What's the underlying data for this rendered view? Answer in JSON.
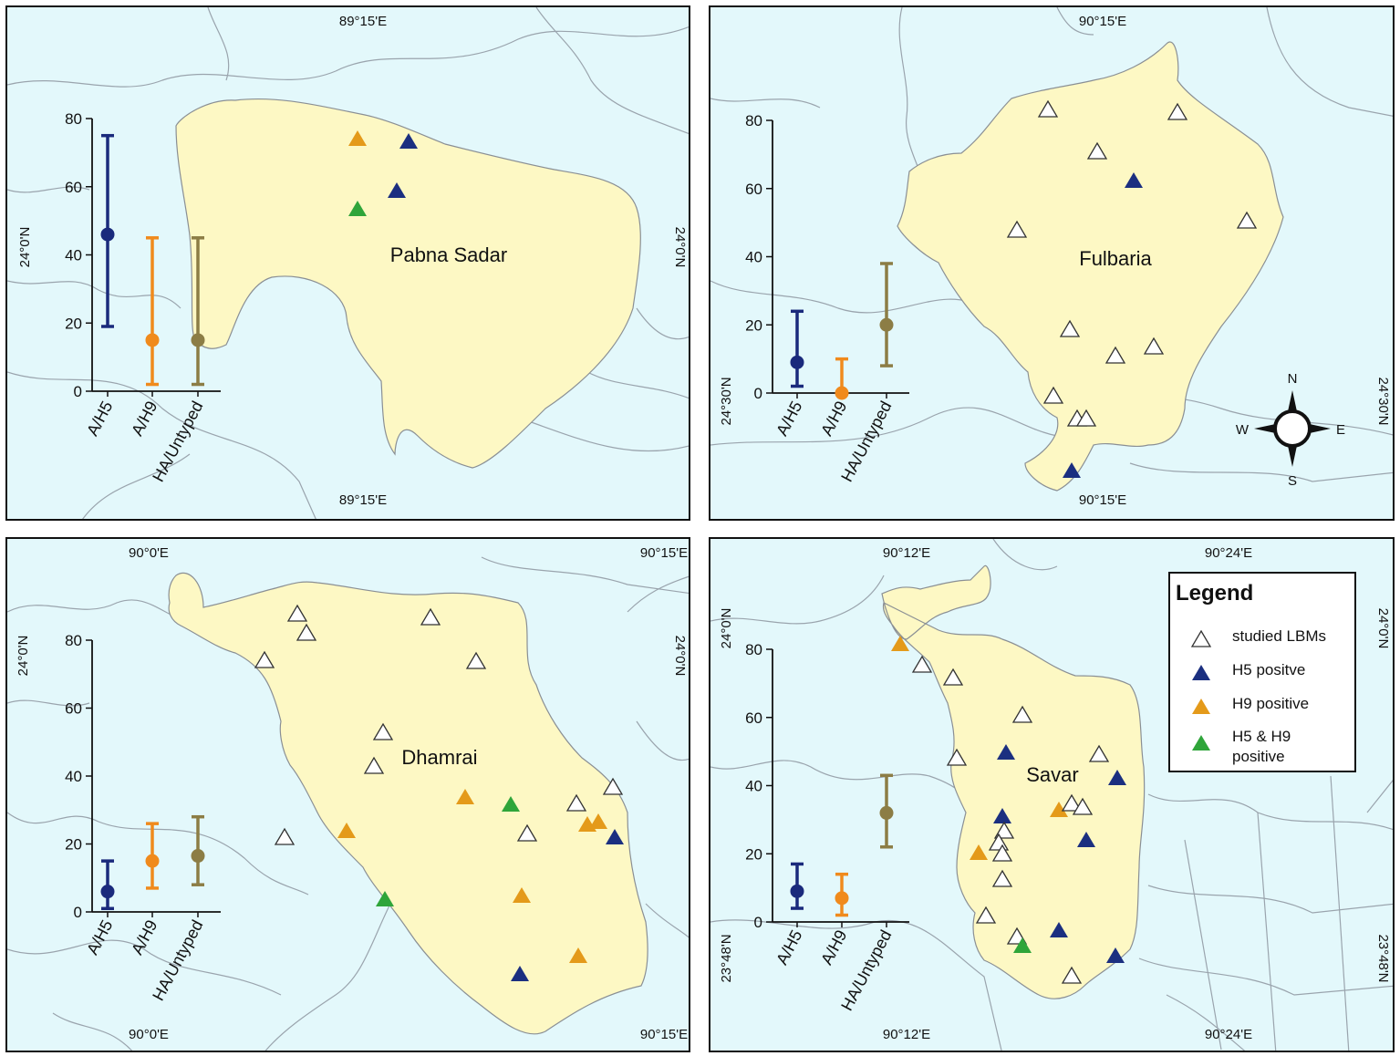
{
  "colors": {
    "water": "#e3f8fb",
    "land": "#fdf8c4",
    "boundary": "#9aa4ad",
    "h5": "#1a2a7c",
    "h9": "#f08a1c",
    "untyped": "#8c7d45",
    "tri_h5": "#1b2f80",
    "tri_h9": "#e49a1a",
    "tri_h5h9": "#2fa53a"
  },
  "categories": [
    "A/H5",
    "A/H9",
    "HA/Untyped"
  ],
  "legend": {
    "title": "Legend",
    "items": [
      {
        "label": "studied LBMs",
        "type": "studied"
      },
      {
        "label": "H5 positve",
        "type": "h5"
      },
      {
        "label": "H9 positive",
        "type": "h9"
      },
      {
        "label": "H5 & H9 positive",
        "type": "h5h9"
      }
    ]
  },
  "compass": {
    "n": "N",
    "s": "S",
    "e": "E",
    "w": "W"
  },
  "panels": [
    {
      "id": "pabna",
      "name": "Pabna Sadar",
      "coords": {
        "top": "89°15'E",
        "bottom": "89°15'E",
        "left": "24°0'N",
        "right": "24°0'N"
      },
      "chart_data": {
        "type": "scatter",
        "categories": [
          "A/H5",
          "A/H9",
          "HA/Untyped"
        ],
        "ylim": [
          0,
          80
        ],
        "yticks": [
          "0",
          "20",
          "40",
          "60",
          "80"
        ],
        "series": [
          {
            "name": "A/H5",
            "value": 46,
            "low": 19,
            "high": 75
          },
          {
            "name": "A/H9",
            "value": 15,
            "low": 2,
            "high": 45
          },
          {
            "name": "HA/Untyped",
            "value": 15,
            "low": 2,
            "high": 45
          }
        ]
      }
    },
    {
      "id": "fulbaria",
      "name": "Fulbaria",
      "coords": {
        "top": "90°15'E",
        "bottom": "90°15'E",
        "left": "24°30'N",
        "right": "24°30'N"
      },
      "chart_data": {
        "type": "scatter",
        "categories": [
          "A/H5",
          "A/H9",
          "HA/Untyped"
        ],
        "ylim": [
          0,
          80
        ],
        "yticks": [
          "0",
          "20",
          "40",
          "60",
          "80"
        ],
        "series": [
          {
            "name": "A/H5",
            "value": 9,
            "low": 2,
            "high": 24
          },
          {
            "name": "A/H9",
            "value": 0,
            "low": 0,
            "high": 10
          },
          {
            "name": "HA/Untyped",
            "value": 20,
            "low": 8,
            "high": 38
          }
        ]
      }
    },
    {
      "id": "dhamrai",
      "name": "Dhamrai",
      "coords": {
        "top_left": "90°0'E",
        "top_right": "90°15'E",
        "bottom_left": "90°0'E",
        "bottom_right": "90°15'E",
        "left": "24°0'N",
        "right": "24°0'N"
      },
      "chart_data": {
        "type": "scatter",
        "categories": [
          "A/H5",
          "A/H9",
          "HA/Untyped"
        ],
        "ylim": [
          0,
          80
        ],
        "yticks": [
          "0",
          "20",
          "40",
          "60",
          "80"
        ],
        "series": [
          {
            "name": "A/H5",
            "value": 6,
            "low": 1,
            "high": 15
          },
          {
            "name": "A/H9",
            "value": 15,
            "low": 7,
            "high": 26
          },
          {
            "name": "HA/Untyped",
            "value": 16.5,
            "low": 8,
            "high": 28
          }
        ]
      }
    },
    {
      "id": "savar",
      "name": "Savar",
      "coords": {
        "top_left": "90°12'E",
        "top_right": "90°24'E",
        "bottom_left": "90°12'E",
        "bottom_right": "90°24'E",
        "left_top": "24°0'N",
        "left_bottom": "23°48'N",
        "right_top": "24°0'N",
        "right_bottom": "23°48'N"
      },
      "chart_data": {
        "type": "scatter",
        "categories": [
          "A/H5",
          "A/H9",
          "HA/Untyped"
        ],
        "ylim": [
          0,
          80
        ],
        "yticks": [
          "0",
          "20",
          "40",
          "60",
          "80"
        ],
        "series": [
          {
            "name": "A/H5",
            "value": 9,
            "low": 4,
            "high": 17
          },
          {
            "name": "A/H9",
            "value": 7,
            "low": 2,
            "high": 14
          },
          {
            "name": "HA/Untyped",
            "value": 32,
            "low": 22,
            "high": 43
          }
        ]
      }
    }
  ]
}
